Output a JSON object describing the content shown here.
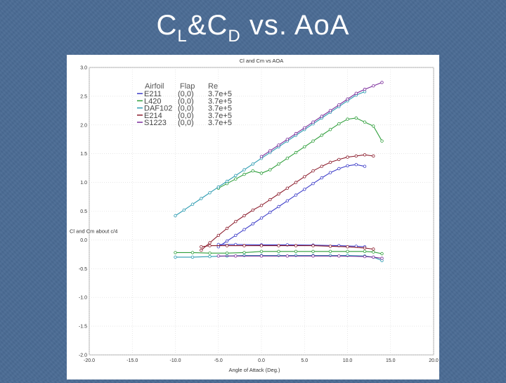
{
  "slide": {
    "title_c": "C",
    "title_sub_l": "L",
    "title_amp_c": "&C",
    "title_sub_d": "D",
    "title_rest": " vs. AoA",
    "background": "#4a6b94"
  },
  "chart_data": {
    "type": "line",
    "title": "Cl and Cm vs AOA",
    "xlabel": "Angle of Attack (Deg.)",
    "ylabel": "Cl and Cm about c/4",
    "xlim": [
      -20,
      20
    ],
    "ylim": [
      -2.0,
      3.0
    ],
    "x_ticks": [
      "-20.0",
      "-15.0",
      "-10.0",
      "-5.0",
      "0.0",
      "5.0",
      "10.0",
      "15.0",
      "20.0"
    ],
    "y_ticks": [
      "-2.0",
      "-1.5",
      "-1.0",
      "-0.5",
      "0.0",
      "0.5",
      "1.0",
      "1.5",
      "2.0",
      "2.5",
      "3.0"
    ],
    "grid": true,
    "legend_position": "top-left",
    "legend_header": {
      "airfoil": "Airfoil",
      "flap": "Flap",
      "re": "Re"
    },
    "series": [
      {
        "name": "E211",
        "flap": "(0,0)",
        "re": "3.7e+5",
        "color": "#3c3cc8",
        "cl": [
          [
            -5,
            -0.12
          ],
          [
            -4,
            -0.02
          ],
          [
            -3,
            0.08
          ],
          [
            -2,
            0.18
          ],
          [
            -1,
            0.28
          ],
          [
            0,
            0.38
          ],
          [
            1,
            0.48
          ],
          [
            2,
            0.58
          ],
          [
            3,
            0.68
          ],
          [
            4,
            0.78
          ],
          [
            5,
            0.88
          ],
          [
            6,
            0.98
          ],
          [
            7,
            1.08
          ],
          [
            8,
            1.17
          ],
          [
            9,
            1.24
          ],
          [
            10,
            1.29
          ],
          [
            11,
            1.31
          ],
          [
            12,
            1.28
          ]
        ],
        "cm": [
          [
            -5,
            -0.08
          ],
          [
            -3,
            -0.08
          ],
          [
            0,
            -0.085
          ],
          [
            3,
            -0.085
          ],
          [
            6,
            -0.09
          ],
          [
            9,
            -0.1
          ],
          [
            11,
            -0.11
          ],
          [
            12,
            -0.12
          ]
        ]
      },
      {
        "name": "L420",
        "flap": "(0,0)",
        "re": "3.7e+5",
        "color": "#2e9e3a",
        "cl": [
          [
            -5,
            0.9
          ],
          [
            -4,
            0.98
          ],
          [
            -3,
            1.06
          ],
          [
            -2,
            1.14
          ],
          [
            -1,
            1.2
          ],
          [
            0,
            1.16
          ],
          [
            1,
            1.22
          ],
          [
            2,
            1.32
          ],
          [
            3,
            1.42
          ],
          [
            4,
            1.52
          ],
          [
            5,
            1.62
          ],
          [
            6,
            1.72
          ],
          [
            7,
            1.82
          ],
          [
            8,
            1.92
          ],
          [
            9,
            2.02
          ],
          [
            10,
            2.1
          ],
          [
            11,
            2.12
          ],
          [
            12,
            2.05
          ],
          [
            13,
            1.98
          ],
          [
            14,
            1.72
          ]
        ],
        "cm": [
          [
            -10,
            -0.22
          ],
          [
            -8,
            -0.22
          ],
          [
            -6,
            -0.23
          ],
          [
            -4,
            -0.23
          ],
          [
            -2,
            -0.22
          ],
          [
            0,
            -0.2
          ],
          [
            2,
            -0.2
          ],
          [
            4,
            -0.2
          ],
          [
            6,
            -0.2
          ],
          [
            8,
            -0.2
          ],
          [
            10,
            -0.2
          ],
          [
            12,
            -0.2
          ],
          [
            13,
            -0.21
          ],
          [
            14,
            -0.24
          ]
        ]
      },
      {
        "name": "DAF102",
        "flap": "(0,0)",
        "re": "3.7e+5",
        "color": "#2a9ab0",
        "cl": [
          [
            -10,
            0.42
          ],
          [
            -9,
            0.52
          ],
          [
            -8,
            0.62
          ],
          [
            -7,
            0.72
          ],
          [
            -6,
            0.82
          ],
          [
            -5,
            0.92
          ],
          [
            -4,
            1.02
          ],
          [
            -3,
            1.12
          ],
          [
            -2,
            1.22
          ],
          [
            -1,
            1.32
          ],
          [
            0,
            1.42
          ],
          [
            1,
            1.52
          ],
          [
            2,
            1.62
          ],
          [
            3,
            1.72
          ],
          [
            4,
            1.82
          ],
          [
            5,
            1.92
          ],
          [
            6,
            2.02
          ],
          [
            7,
            2.12
          ],
          [
            8,
            2.22
          ],
          [
            9,
            2.32
          ],
          [
            10,
            2.42
          ],
          [
            11,
            2.52
          ],
          [
            12,
            2.58
          ]
        ],
        "cm": [
          [
            -10,
            -0.3
          ],
          [
            -8,
            -0.3
          ],
          [
            -6,
            -0.29
          ],
          [
            -4,
            -0.28
          ],
          [
            -2,
            -0.27
          ],
          [
            0,
            -0.27
          ],
          [
            2,
            -0.27
          ],
          [
            4,
            -0.27
          ],
          [
            6,
            -0.27
          ],
          [
            8,
            -0.27
          ],
          [
            10,
            -0.27
          ],
          [
            12,
            -0.28
          ],
          [
            13,
            -0.3
          ],
          [
            14,
            -0.36
          ]
        ]
      },
      {
        "name": "E214",
        "flap": "(0,0)",
        "re": "3.7e+5",
        "color": "#8b1c2c",
        "cl": [
          [
            -7,
            -0.18
          ],
          [
            -6,
            -0.05
          ],
          [
            -5,
            0.08
          ],
          [
            -4,
            0.2
          ],
          [
            -3,
            0.32
          ],
          [
            -2,
            0.42
          ],
          [
            -1,
            0.52
          ],
          [
            0,
            0.6
          ],
          [
            1,
            0.7
          ],
          [
            2,
            0.8
          ],
          [
            3,
            0.9
          ],
          [
            4,
            1.0
          ],
          [
            5,
            1.1
          ],
          [
            6,
            1.2
          ],
          [
            7,
            1.28
          ],
          [
            8,
            1.35
          ],
          [
            9,
            1.4
          ],
          [
            10,
            1.44
          ],
          [
            11,
            1.46
          ],
          [
            12,
            1.48
          ],
          [
            13,
            1.46
          ]
        ],
        "cm": [
          [
            -7,
            -0.12
          ],
          [
            -6,
            -0.1
          ],
          [
            -4,
            -0.1
          ],
          [
            -2,
            -0.1
          ],
          [
            0,
            -0.1
          ],
          [
            2,
            -0.1
          ],
          [
            4,
            -0.1
          ],
          [
            6,
            -0.1
          ],
          [
            8,
            -0.11
          ],
          [
            10,
            -0.12
          ],
          [
            12,
            -0.14
          ],
          [
            13,
            -0.16
          ]
        ]
      },
      {
        "name": "S1223",
        "flap": "(0,0)",
        "re": "3.7e+5",
        "color": "#7a2a9a",
        "cl": [
          [
            0,
            1.45
          ],
          [
            1,
            1.55
          ],
          [
            2,
            1.65
          ],
          [
            3,
            1.75
          ],
          [
            4,
            1.85
          ],
          [
            5,
            1.95
          ],
          [
            6,
            2.05
          ],
          [
            7,
            2.15
          ],
          [
            8,
            2.25
          ],
          [
            9,
            2.35
          ],
          [
            10,
            2.45
          ],
          [
            11,
            2.55
          ],
          [
            12,
            2.62
          ],
          [
            13,
            2.68
          ],
          [
            14,
            2.74
          ]
        ],
        "cm": [
          [
            -5,
            -0.28
          ],
          [
            -3,
            -0.28
          ],
          [
            0,
            -0.28
          ],
          [
            3,
            -0.28
          ],
          [
            6,
            -0.28
          ],
          [
            9,
            -0.28
          ],
          [
            12,
            -0.29
          ],
          [
            13,
            -0.3
          ],
          [
            14,
            -0.32
          ]
        ]
      }
    ]
  }
}
